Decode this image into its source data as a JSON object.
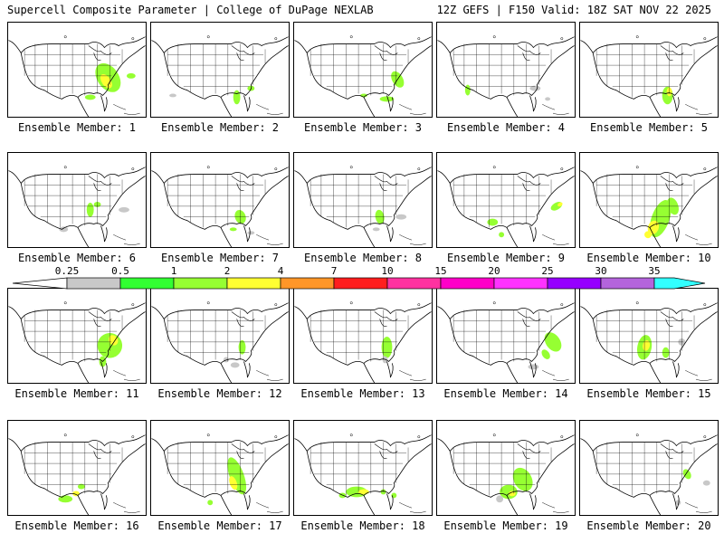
{
  "header": {
    "left": "Supercell Composite Parameter | College of DuPage NEXLAB",
    "right": "12Z GEFS | F150 Valid: 18Z SAT NOV 22 2025"
  },
  "members": [
    {
      "label": "Ensemble Member: 1"
    },
    {
      "label": "Ensemble Member: 2"
    },
    {
      "label": "Ensemble Member: 3"
    },
    {
      "label": "Ensemble Member: 4"
    },
    {
      "label": "Ensemble Member: 5"
    },
    {
      "label": "Ensemble Member: 6"
    },
    {
      "label": "Ensemble Member: 7"
    },
    {
      "label": "Ensemble Member: 8"
    },
    {
      "label": "Ensemble Member: 9"
    },
    {
      "label": "Ensemble Member: 10"
    },
    {
      "label": "Ensemble Member: 11"
    },
    {
      "label": "Ensemble Member: 12"
    },
    {
      "label": "Ensemble Member: 13"
    },
    {
      "label": "Ensemble Member: 14"
    },
    {
      "label": "Ensemble Member: 15"
    },
    {
      "label": "Ensemble Member: 16"
    },
    {
      "label": "Ensemble Member: 17"
    },
    {
      "label": "Ensemble Member: 18"
    },
    {
      "label": "Ensemble Member: 19"
    },
    {
      "label": "Ensemble Member: 20"
    }
  ],
  "colorbar": {
    "labels": [
      "0.25",
      "0.5",
      "1",
      "2",
      "4",
      "7",
      "10",
      "15",
      "20",
      "25",
      "30",
      "35"
    ],
    "colors": [
      "#c8c8c8",
      "#32ff32",
      "#96ff32",
      "#ffff32",
      "#ff9628",
      "#ff1e1e",
      "#ff32a0",
      "#ff00c8",
      "#ff32ff",
      "#9600ff",
      "#b464dc",
      "#32ffff"
    ]
  }
}
